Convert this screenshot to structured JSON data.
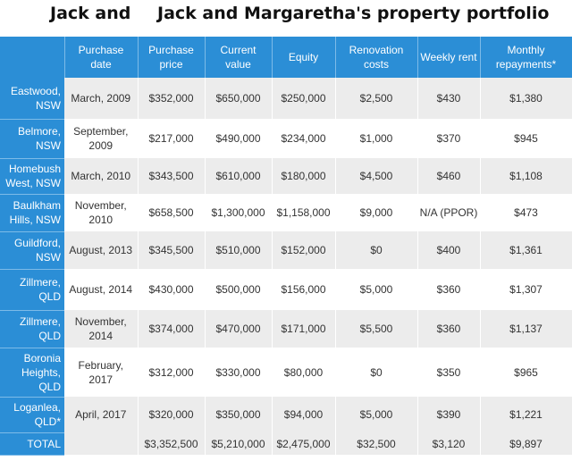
{
  "title_left": "Jack and",
  "title": "Jack and Margaretha's property portfolio",
  "columns": [
    "Purchase date",
    "Purchase price",
    "Current value",
    "Equity",
    "Renovation costs",
    "Weekly rent",
    "Monthly repayments*"
  ],
  "rows": [
    {
      "location": "Eastwood, NSW",
      "cells": [
        "March, 2009",
        "$352,000",
        "$650,000",
        "$250,000",
        "$2,500",
        "$430",
        "$1,380"
      ]
    },
    {
      "location": "Belmore, NSW",
      "cells": [
        "September, 2009",
        "$217,000",
        "$490,000",
        "$234,000",
        "$1,000",
        "$370",
        "$945"
      ]
    },
    {
      "location": "Homebush West, NSW",
      "cells": [
        "March, 2010",
        "$343,500",
        "$610,000",
        "$180,000",
        "$4,500",
        "$460",
        "$1,108"
      ]
    },
    {
      "location": "Baulkham Hills, NSW",
      "cells": [
        "November, 2010",
        "$658,500",
        "$1,300,000",
        "$1,158,000",
        "$9,000",
        "N/A (PPOR)",
        "$473"
      ]
    },
    {
      "location": "Guildford, NSW",
      "cells": [
        "August, 2013",
        "$345,500",
        "$510,000",
        "$152,000",
        "$0",
        "$400",
        "$1,361"
      ]
    },
    {
      "location": "Zillmere, QLD",
      "cells": [
        "August, 2014",
        "$430,000",
        "$500,000",
        "$156,000",
        "$5,000",
        "$360",
        "$1,307"
      ]
    },
    {
      "location": "Zillmere, QLD",
      "cells": [
        "November, 2014",
        "$374,000",
        "$470,000",
        "$171,000",
        "$5,500",
        "$360",
        "$1,137"
      ]
    },
    {
      "location": "Boronia Heights, QLD",
      "cells": [
        "February, 2017",
        "$312,000",
        "$330,000",
        "$80,000",
        "$0",
        "$350",
        "$965"
      ]
    },
    {
      "location": "Loganlea, QLD*",
      "cells": [
        "April, 2017",
        "$320,000",
        "$350,000",
        "$94,000",
        "$5,000",
        "$390",
        "$1,221"
      ]
    }
  ],
  "total": {
    "label": "TOTAL",
    "cells": [
      "",
      "$3,352,500",
      "$5,210,000",
      "$2,475,000",
      "$32,500",
      "$3,120",
      "$9,897"
    ]
  },
  "colors": {
    "header_blue": "#2b8ed6",
    "stripe_gray": "#ececec"
  }
}
